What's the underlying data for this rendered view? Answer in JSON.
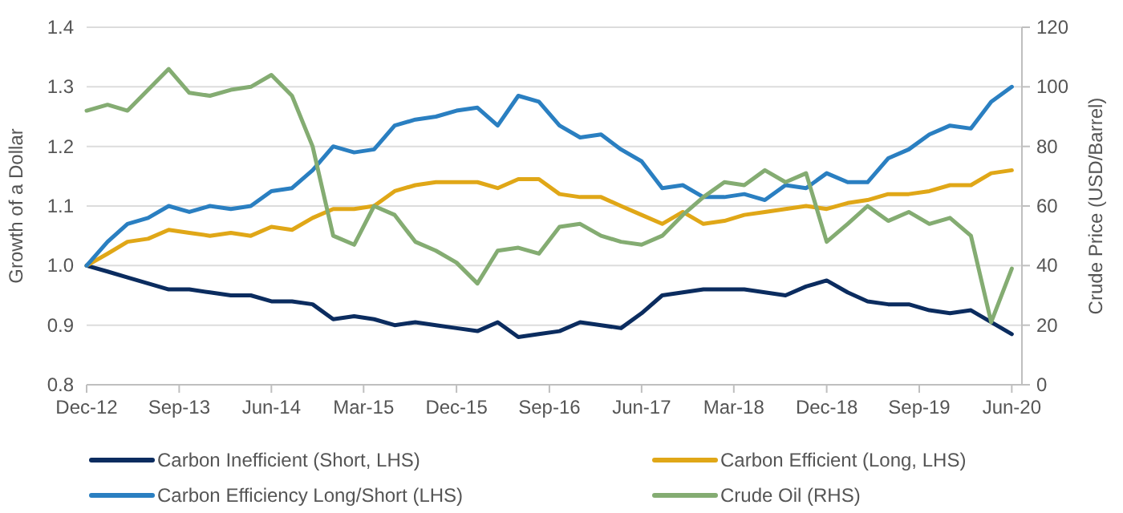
{
  "chart_data": {
    "type": "line",
    "ylabel": "Growth of a Dollar",
    "y2label": "Crude Price (USD/Barrel)",
    "x": [
      "2012-12",
      "2013-02",
      "2013-04",
      "2013-06",
      "2013-08",
      "2013-10",
      "2013-12",
      "2014-02",
      "2014-04",
      "2014-06",
      "2014-08",
      "2014-10",
      "2014-12",
      "2015-02",
      "2015-04",
      "2015-06",
      "2015-08",
      "2015-10",
      "2015-12",
      "2016-02",
      "2016-04",
      "2016-06",
      "2016-08",
      "2016-10",
      "2016-12",
      "2017-02",
      "2017-04",
      "2017-06",
      "2017-08",
      "2017-10",
      "2017-12",
      "2018-02",
      "2018-04",
      "2018-06",
      "2018-08",
      "2018-10",
      "2018-12",
      "2019-02",
      "2019-04",
      "2019-06",
      "2019-08",
      "2019-10",
      "2019-12",
      "2020-02",
      "2020-04",
      "2020-06"
    ],
    "xlim": [
      "2012-12",
      "2020-07"
    ],
    "xticks": [
      {
        "value": "2012-12",
        "label": "Dec-12"
      },
      {
        "value": "2013-09",
        "label": "Sep-13"
      },
      {
        "value": "2014-06",
        "label": "Jun-14"
      },
      {
        "value": "2015-03",
        "label": "Mar-15"
      },
      {
        "value": "2015-12",
        "label": "Dec-15"
      },
      {
        "value": "2016-09",
        "label": "Sep-16"
      },
      {
        "value": "2017-06",
        "label": "Jun-17"
      },
      {
        "value": "2018-03",
        "label": "Mar-18"
      },
      {
        "value": "2018-12",
        "label": "Dec-18"
      },
      {
        "value": "2019-09",
        "label": "Sep-19"
      },
      {
        "value": "2020-06",
        "label": "Jun-20"
      }
    ],
    "ylim": [
      0.8,
      1.4
    ],
    "yticks": [
      {
        "value": 0.8,
        "label": "0.8"
      },
      {
        "value": 0.9,
        "label": "0.9"
      },
      {
        "value": 1.0,
        "label": "1.0"
      },
      {
        "value": 1.1,
        "label": "1.1"
      },
      {
        "value": 1.2,
        "label": "1.2"
      },
      {
        "value": 1.3,
        "label": "1.3"
      },
      {
        "value": 1.4,
        "label": "1.4"
      }
    ],
    "y2lim": [
      0,
      120
    ],
    "y2ticks": [
      0,
      20,
      40,
      60,
      80,
      100,
      120
    ],
    "grid": "y",
    "legend": "bottom",
    "marker": "none",
    "line_style": "solid",
    "series": [
      {
        "name": "Carbon Inefficient (Short, LHS)",
        "color": "#0b2c5f",
        "values": [
          1.0,
          0.99,
          0.98,
          0.97,
          0.96,
          0.96,
          0.955,
          0.95,
          0.95,
          0.94,
          0.94,
          0.935,
          0.91,
          0.915,
          0.91,
          0.9,
          0.905,
          0.9,
          0.895,
          0.89,
          0.905,
          0.88,
          0.885,
          0.89,
          0.905,
          0.9,
          0.895,
          0.92,
          0.95,
          0.955,
          0.96,
          0.96,
          0.96,
          0.955,
          0.95,
          0.965,
          0.975,
          0.955,
          0.94,
          0.935,
          0.935,
          0.925,
          0.92,
          0.925,
          0.905,
          0.885
        ]
      },
      {
        "name": "Carbon Efficient (Long, LHS)",
        "color": "#e0a717",
        "values": [
          1.0,
          1.02,
          1.04,
          1.045,
          1.06,
          1.055,
          1.05,
          1.055,
          1.05,
          1.065,
          1.06,
          1.08,
          1.095,
          1.095,
          1.1,
          1.125,
          1.135,
          1.14,
          1.14,
          1.14,
          1.13,
          1.145,
          1.145,
          1.12,
          1.115,
          1.115,
          1.1,
          1.085,
          1.07,
          1.09,
          1.07,
          1.075,
          1.085,
          1.09,
          1.095,
          1.1,
          1.095,
          1.105,
          1.11,
          1.12,
          1.12,
          1.125,
          1.135,
          1.135,
          1.155,
          1.16
        ]
      },
      {
        "name": "Carbon Efficiency Long/Short (LHS)",
        "color": "#2a7fc1",
        "values": [
          1.0,
          1.04,
          1.07,
          1.08,
          1.1,
          1.09,
          1.1,
          1.095,
          1.1,
          1.125,
          1.13,
          1.16,
          1.2,
          1.19,
          1.195,
          1.235,
          1.245,
          1.25,
          1.26,
          1.265,
          1.235,
          1.285,
          1.275,
          1.235,
          1.215,
          1.22,
          1.195,
          1.175,
          1.13,
          1.135,
          1.115,
          1.115,
          1.12,
          1.11,
          1.135,
          1.13,
          1.155,
          1.14,
          1.14,
          1.18,
          1.195,
          1.22,
          1.235,
          1.23,
          1.275,
          1.3
        ]
      },
      {
        "name": "Crude Oil (RHS)",
        "color": "#84ac72",
        "axis": "y2",
        "values": [
          92,
          94,
          92,
          99,
          106,
          98,
          97,
          99,
          100,
          104,
          97,
          80,
          50,
          47,
          60,
          57,
          48,
          45,
          41,
          34,
          45,
          46,
          44,
          53,
          54,
          50,
          48,
          47,
          50,
          57,
          63,
          68,
          67,
          72,
          68,
          71,
          48,
          54,
          60,
          55,
          58,
          54,
          56,
          50,
          21,
          39
        ]
      }
    ]
  }
}
